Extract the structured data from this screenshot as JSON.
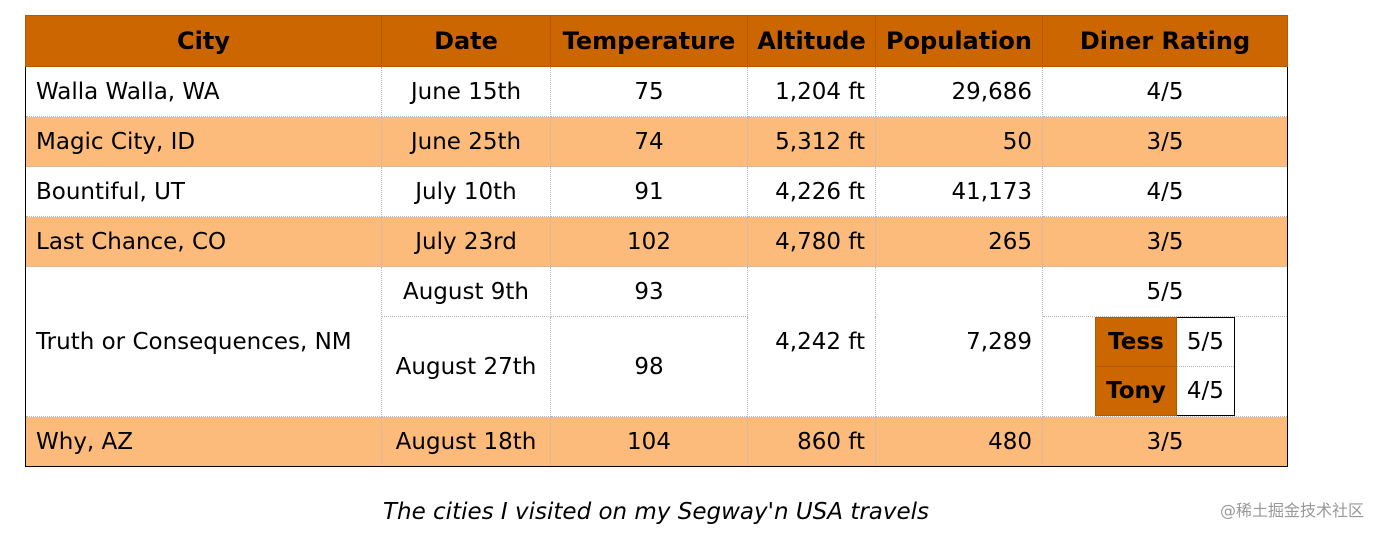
{
  "table": {
    "headers": {
      "city": "City",
      "date": "Date",
      "temperature": "Temperature",
      "altitude": "Altitude",
      "population": "Population",
      "diner_rating": "Diner Rating"
    },
    "rows": [
      {
        "city": "Walla Walla, WA",
        "date": "June 15th",
        "temperature": "75",
        "altitude": "1,204 ft",
        "population": "29,686",
        "rating": "4/5"
      },
      {
        "city": "Magic City, ID",
        "date": "June 25th",
        "temperature": "74",
        "altitude": "5,312 ft",
        "population": "50",
        "rating": "3/5"
      },
      {
        "city": "Bountiful, UT",
        "date": "July 10th",
        "temperature": "91",
        "altitude": "4,226 ft",
        "population": "41,173",
        "rating": "4/5"
      },
      {
        "city": "Last Chance, CO",
        "date": "July 23rd",
        "temperature": "102",
        "altitude": "4,780 ft",
        "population": "265",
        "rating": "3/5"
      },
      {
        "city": "Truth or Consequences, NM",
        "altitude": "4,242 ft",
        "population": "7,289",
        "visits": [
          {
            "date": "August 9th",
            "temperature": "93",
            "rating": "5/5"
          },
          {
            "date": "August 27th",
            "temperature": "98",
            "ratings": [
              {
                "name": "Tess",
                "rating": "5/5"
              },
              {
                "name": "Tony",
                "rating": "4/5"
              }
            ]
          }
        ]
      },
      {
        "city": "Why, AZ",
        "date": "August 18th",
        "temperature": "104",
        "altitude": "860 ft",
        "population": "480",
        "rating": "3/5"
      }
    ]
  },
  "caption": "The cities I visited on my Segway'n USA travels",
  "watermark": "@稀土掘金技术社区",
  "colors": {
    "header": "#cc6600",
    "stripe": "#fcbb7a",
    "row": "#ffffff"
  }
}
